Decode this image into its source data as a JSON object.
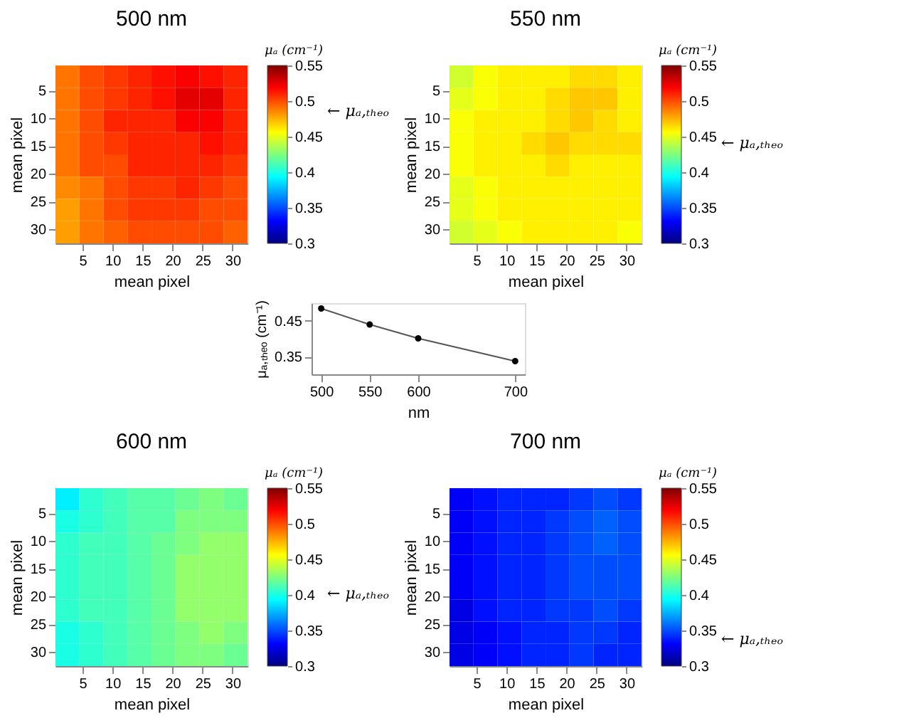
{
  "chart_data": [
    {
      "type": "heatmap",
      "title": "500 nm",
      "xlabel": "mean pixel",
      "ylabel": "mean pixel",
      "x": [
        2.5,
        6.5,
        10.5,
        14.5,
        18.5,
        22.5,
        26.5,
        30.5
      ],
      "xlim": [
        0.5,
        32.5
      ],
      "xticks": [
        5,
        10,
        15,
        20,
        25,
        30
      ],
      "ylim": [
        32.5,
        0.5
      ],
      "yticks": [
        5,
        10,
        15,
        20,
        25,
        30
      ],
      "cells": [
        [
          0.49,
          0.5,
          0.505,
          0.51,
          0.515,
          0.52,
          0.515,
          0.51
        ],
        [
          0.49,
          0.5,
          0.505,
          0.51,
          0.515,
          0.525,
          0.525,
          0.51
        ],
        [
          0.49,
          0.5,
          0.51,
          0.51,
          0.51,
          0.52,
          0.52,
          0.51
        ],
        [
          0.49,
          0.5,
          0.505,
          0.51,
          0.51,
          0.51,
          0.515,
          0.51
        ],
        [
          0.49,
          0.5,
          0.5,
          0.51,
          0.51,
          0.51,
          0.51,
          0.505
        ],
        [
          0.485,
          0.49,
          0.5,
          0.505,
          0.505,
          0.51,
          0.505,
          0.5
        ],
        [
          0.48,
          0.49,
          0.5,
          0.505,
          0.505,
          0.505,
          0.5,
          0.5
        ],
        [
          0.48,
          0.49,
          0.495,
          0.5,
          0.5,
          0.5,
          0.5,
          0.495
        ]
      ],
      "clim": [
        0.3,
        0.55
      ],
      "cticks": [
        0.3,
        0.35,
        0.4,
        0.45,
        0.5,
        0.55
      ],
      "clabel": "μₐ (cm⁻¹)",
      "colors": [
        "#00007f",
        "#0000ff",
        "#007fff",
        "#00ffff",
        "#7fff7f",
        "#ffff00",
        "#ff7f00",
        "#ff0000",
        "#7f0000"
      ],
      "annotations": [
        "← μₐ,ₜₕₑₒ"
      ]
    },
    {
      "type": "heatmap",
      "title": "550 nm",
      "xlabel": "mean pixel",
      "ylabel": "mean pixel",
      "x": [
        2.5,
        6.5,
        10.5,
        14.5,
        18.5,
        22.5,
        26.5,
        30.5
      ],
      "xlim": [
        0.5,
        32.5
      ],
      "xticks": [
        5,
        10,
        15,
        20,
        25,
        30
      ],
      "ylim": [
        32.5,
        0.5
      ],
      "yticks": [
        5,
        10,
        15,
        20,
        25,
        30
      ],
      "cells": [
        [
          0.445,
          0.455,
          0.46,
          0.46,
          0.46,
          0.465,
          0.465,
          0.46
        ],
        [
          0.45,
          0.455,
          0.46,
          0.46,
          0.465,
          0.47,
          0.47,
          0.46
        ],
        [
          0.455,
          0.46,
          0.46,
          0.46,
          0.465,
          0.47,
          0.465,
          0.46
        ],
        [
          0.455,
          0.46,
          0.46,
          0.465,
          0.47,
          0.465,
          0.465,
          0.465
        ],
        [
          0.455,
          0.46,
          0.46,
          0.46,
          0.465,
          0.46,
          0.46,
          0.46
        ],
        [
          0.45,
          0.455,
          0.46,
          0.46,
          0.46,
          0.46,
          0.46,
          0.46
        ],
        [
          0.45,
          0.455,
          0.46,
          0.46,
          0.46,
          0.46,
          0.46,
          0.46
        ],
        [
          0.445,
          0.45,
          0.455,
          0.46,
          0.46,
          0.46,
          0.46,
          0.455
        ]
      ],
      "clim": [
        0.3,
        0.55
      ],
      "cticks": [
        0.3,
        0.35,
        0.4,
        0.45,
        0.5,
        0.55
      ],
      "clabel": "μₐ (cm⁻¹)",
      "colors": [
        "#00007f",
        "#0000ff",
        "#007fff",
        "#00ffff",
        "#7fff7f",
        "#ffff00",
        "#ff7f00",
        "#ff0000",
        "#7f0000"
      ],
      "annotations": [
        "← μₐ,ₜₕₑₒ"
      ]
    },
    {
      "type": "line",
      "xlabel": "nm",
      "ylabel": "μₐ,ₜₕₑₒ (cm⁻¹)",
      "x": [
        500,
        550,
        600,
        700
      ],
      "values": [
        0.485,
        0.44,
        0.401,
        0.337
      ],
      "color": "#000000",
      "marker": "circle",
      "xlim": [
        490,
        710
      ],
      "xticks": [
        500,
        550,
        600,
        700
      ],
      "ylim": [
        0.3,
        0.5
      ],
      "yticks": [
        0.35,
        0.45
      ]
    },
    {
      "type": "heatmap",
      "title": "600 nm",
      "xlabel": "mean pixel",
      "ylabel": "mean pixel",
      "x": [
        2.5,
        6.5,
        10.5,
        14.5,
        18.5,
        22.5,
        26.5,
        30.5
      ],
      "xlim": [
        0.5,
        32.5
      ],
      "xticks": [
        5,
        10,
        15,
        20,
        25,
        30
      ],
      "ylim": [
        32.5,
        0.5
      ],
      "yticks": [
        5,
        10,
        15,
        20,
        25,
        30
      ],
      "cells": [
        [
          0.39,
          0.405,
          0.41,
          0.415,
          0.415,
          0.42,
          0.425,
          0.42
        ],
        [
          0.4,
          0.405,
          0.41,
          0.415,
          0.415,
          0.425,
          0.425,
          0.425
        ],
        [
          0.405,
          0.41,
          0.41,
          0.415,
          0.42,
          0.425,
          0.43,
          0.43
        ],
        [
          0.405,
          0.41,
          0.41,
          0.415,
          0.42,
          0.43,
          0.43,
          0.43
        ],
        [
          0.405,
          0.41,
          0.41,
          0.415,
          0.42,
          0.43,
          0.43,
          0.43
        ],
        [
          0.405,
          0.41,
          0.41,
          0.415,
          0.42,
          0.43,
          0.43,
          0.43
        ],
        [
          0.4,
          0.405,
          0.41,
          0.415,
          0.42,
          0.425,
          0.43,
          0.425
        ],
        [
          0.4,
          0.405,
          0.41,
          0.415,
          0.42,
          0.425,
          0.425,
          0.42
        ]
      ],
      "clim": [
        0.3,
        0.55
      ],
      "cticks": [
        0.3,
        0.35,
        0.4,
        0.45,
        0.5,
        0.55
      ],
      "clabel": "μₐ (cm⁻¹)",
      "colors": [
        "#00007f",
        "#0000ff",
        "#007fff",
        "#00ffff",
        "#7fff7f",
        "#ffff00",
        "#ff7f00",
        "#ff0000",
        "#7f0000"
      ],
      "annotations": [
        "← μₐ,ₜₕₑₒ"
      ]
    },
    {
      "type": "heatmap",
      "title": "700 nm",
      "xlabel": "mean pixel",
      "ylabel": "mean pixel",
      "x": [
        2.5,
        6.5,
        10.5,
        14.5,
        18.5,
        22.5,
        26.5,
        30.5
      ],
      "xlim": [
        0.5,
        32.5
      ],
      "xticks": [
        5,
        10,
        15,
        20,
        25,
        30
      ],
      "ylim": [
        32.5,
        0.5
      ],
      "yticks": [
        5,
        10,
        15,
        20,
        25,
        30
      ],
      "cells": [
        [
          0.33,
          0.335,
          0.34,
          0.34,
          0.34,
          0.345,
          0.35,
          0.345
        ],
        [
          0.33,
          0.335,
          0.34,
          0.34,
          0.345,
          0.35,
          0.355,
          0.35
        ],
        [
          0.33,
          0.335,
          0.34,
          0.34,
          0.345,
          0.35,
          0.355,
          0.35
        ],
        [
          0.33,
          0.335,
          0.34,
          0.34,
          0.345,
          0.35,
          0.35,
          0.35
        ],
        [
          0.33,
          0.335,
          0.34,
          0.34,
          0.345,
          0.35,
          0.35,
          0.35
        ],
        [
          0.325,
          0.335,
          0.34,
          0.34,
          0.345,
          0.345,
          0.35,
          0.345
        ],
        [
          0.325,
          0.33,
          0.335,
          0.34,
          0.34,
          0.345,
          0.345,
          0.34
        ],
        [
          0.325,
          0.33,
          0.335,
          0.34,
          0.34,
          0.345,
          0.34,
          0.34
        ]
      ],
      "clim": [
        0.3,
        0.55
      ],
      "cticks": [
        0.3,
        0.35,
        0.4,
        0.45,
        0.5,
        0.55
      ],
      "clabel": "μₐ (cm⁻¹)",
      "colors": [
        "#00007f",
        "#0000ff",
        "#007fff",
        "#00ffff",
        "#7fff7f",
        "#ffff00",
        "#ff7f00",
        "#ff0000",
        "#7f0000"
      ],
      "annotations": [
        "← μₐ,ₜₕₑₒ"
      ]
    }
  ]
}
